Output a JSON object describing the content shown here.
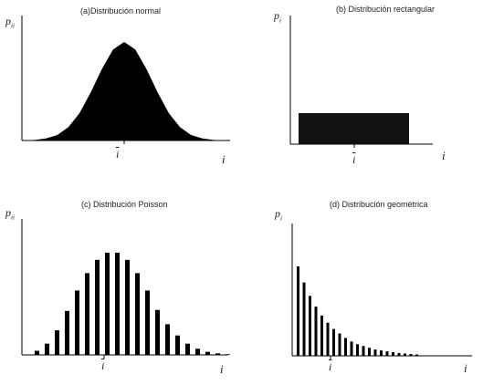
{
  "chart_data": [
    {
      "type": "area",
      "title": "(a)Distribución normal",
      "ylabel": "p",
      "ylabel_sub": "ii",
      "xlabel": "i",
      "mean_label": "i",
      "x": [
        -3.6,
        -3.2,
        -2.8,
        -2.4,
        -2.0,
        -1.6,
        -1.2,
        -0.8,
        -0.4,
        0.0,
        0.4,
        0.8,
        1.2,
        1.6,
        2.0,
        2.4,
        2.8,
        3.2,
        3.6
      ],
      "values": [
        0.001,
        0.006,
        0.02,
        0.056,
        0.135,
        0.278,
        0.487,
        0.726,
        0.923,
        1.0,
        0.923,
        0.726,
        0.487,
        0.278,
        0.135,
        0.056,
        0.02,
        0.006,
        0.001
      ],
      "color": "#000000"
    },
    {
      "type": "bar",
      "title": "(b) Distribución rectangular",
      "ylabel": "p",
      "ylabel_sub": "i",
      "xlabel": "i",
      "mean_label": "i",
      "values": [
        1
      ],
      "color": "#111111"
    },
    {
      "type": "bar",
      "title": "(c) Distribución Poisson",
      "ylabel": "p",
      "ylabel_sub": "ii",
      "xlabel": "i",
      "mean_label": "i",
      "values": [
        0.04,
        0.11,
        0.24,
        0.43,
        0.63,
        0.8,
        0.93,
        1.0,
        1.0,
        0.93,
        0.8,
        0.63,
        0.44,
        0.3,
        0.19,
        0.11,
        0.06,
        0.03,
        0.015,
        0.006
      ],
      "color": "#000000"
    },
    {
      "type": "bar",
      "title": "(d) Distribución geométrica",
      "ylabel": "p",
      "ylabel_sub": "i",
      "xlabel": "i",
      "mean_label": "i",
      "values": [
        1.0,
        0.82,
        0.67,
        0.55,
        0.45,
        0.37,
        0.3,
        0.25,
        0.2,
        0.16,
        0.13,
        0.11,
        0.09,
        0.07,
        0.06,
        0.05,
        0.04,
        0.03,
        0.025,
        0.02,
        0.015
      ],
      "color": "#000000"
    }
  ]
}
